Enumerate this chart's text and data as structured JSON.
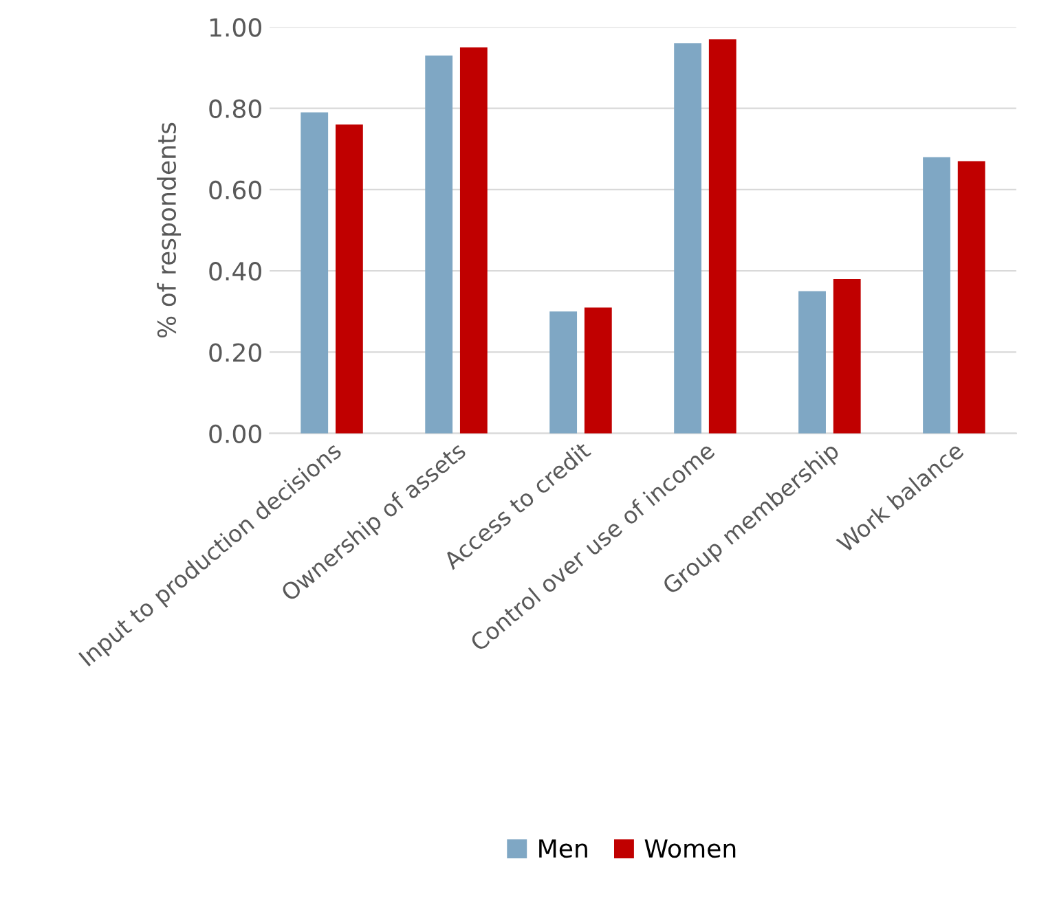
{
  "chart_data": {
    "type": "bar",
    "ylabel": "% of respondents",
    "categories": [
      "Input to production decisions",
      "Ownership of assets",
      "Access to credit",
      "Control over use of income",
      "Group membership",
      "Work balance"
    ],
    "series": [
      {
        "name": "Men",
        "color": "#7fa7c4",
        "values": [
          0.79,
          0.93,
          0.3,
          0.96,
          0.35,
          0.68
        ]
      },
      {
        "name": "Women",
        "color": "#c00000",
        "values": [
          0.76,
          0.95,
          0.31,
          0.97,
          0.38,
          0.67
        ]
      }
    ],
    "ylim": [
      0,
      1
    ],
    "yticks": [
      {
        "value": 0,
        "label": "0.00"
      },
      {
        "value": 0.2,
        "label": "0.20"
      },
      {
        "value": 0.4,
        "label": "0.40"
      },
      {
        "value": 0.6,
        "label": "0.60"
      },
      {
        "value": 0.8,
        "label": "0.80"
      },
      {
        "value": 1,
        "label": "1.00"
      }
    ],
    "grid": "y",
    "legend": "bottom"
  }
}
